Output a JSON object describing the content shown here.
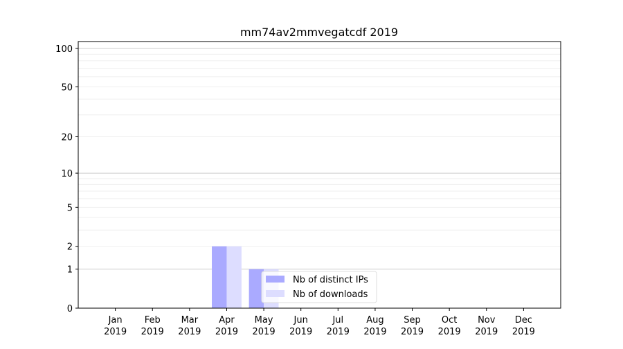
{
  "chart_data": {
    "type": "bar",
    "title": "mm74av2mmvegatcdf 2019",
    "xlabel": "",
    "ylabel": "",
    "y_scale": "log(1+y)",
    "ylim": [
      0,
      113
    ],
    "y_ticks": [
      0,
      1,
      2,
      5,
      10,
      20,
      50,
      100
    ],
    "grid": true,
    "categories": [
      [
        "Jan",
        "2019"
      ],
      [
        "Feb",
        "2019"
      ],
      [
        "Mar",
        "2019"
      ],
      [
        "Apr",
        "2019"
      ],
      [
        "May",
        "2019"
      ],
      [
        "Jun",
        "2019"
      ],
      [
        "Jul",
        "2019"
      ],
      [
        "Aug",
        "2019"
      ],
      [
        "Sep",
        "2019"
      ],
      [
        "Oct",
        "2019"
      ],
      [
        "Nov",
        "2019"
      ],
      [
        "Dec",
        "2019"
      ]
    ],
    "series": [
      {
        "name": "Nb of distinct IPs",
        "color": "#aaaaff",
        "values": [
          0,
          0,
          0,
          2,
          1,
          0,
          0,
          0,
          0,
          0,
          0,
          0
        ]
      },
      {
        "name": "Nb of downloads",
        "color": "#ddddff",
        "values": [
          0,
          0,
          0,
          2,
          1,
          0,
          0,
          0,
          0,
          0,
          0,
          0
        ]
      }
    ],
    "legend_position": "lower-center"
  }
}
